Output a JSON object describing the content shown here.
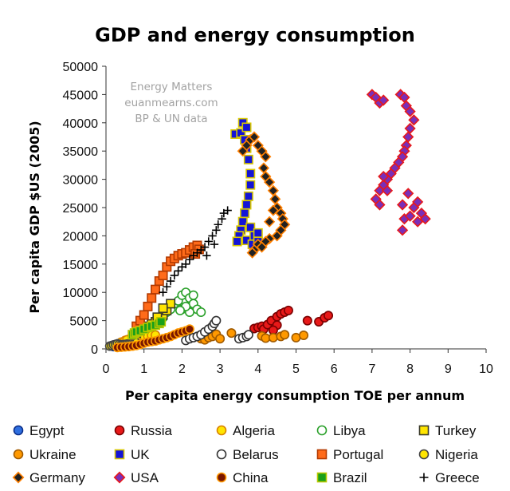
{
  "chart_data": {
    "type": "scatter",
    "title": "GDP and energy consumption",
    "xlabel": "Per capita energy consumption TOE per annum",
    "ylabel": "Per capita GDP $US (2005)",
    "xlim": [
      0,
      10
    ],
    "ylim": [
      0,
      50000
    ],
    "x_ticks": [
      "0",
      "1",
      "2",
      "3",
      "4",
      "5",
      "6",
      "7",
      "8",
      "9",
      "10"
    ],
    "y_ticks": [
      "0",
      "5000",
      "10000",
      "15000",
      "20000",
      "25000",
      "30000",
      "35000",
      "40000",
      "45000",
      "50000"
    ],
    "grid": false,
    "legend_position": "bottom",
    "annotation_lines": [
      "Energy Matters",
      "euanmearns.com",
      "BP & UN data"
    ],
    "series": [
      {
        "name": "Egypt",
        "marker": "circle",
        "fill": "#2f6fe0",
        "stroke": "#0b2f8a",
        "points": [
          [
            0.2,
            400
          ],
          [
            0.25,
            500
          ],
          [
            0.3,
            600
          ],
          [
            0.35,
            700
          ],
          [
            0.4,
            750
          ],
          [
            0.45,
            800
          ],
          [
            0.5,
            900
          ],
          [
            0.55,
            1000
          ],
          [
            0.6,
            1050
          ],
          [
            0.65,
            1100
          ],
          [
            0.7,
            1200
          ],
          [
            0.75,
            1250
          ],
          [
            0.8,
            1300
          ],
          [
            0.85,
            1400
          ],
          [
            0.9,
            1500
          ],
          [
            0.95,
            1550
          ]
        ]
      },
      {
        "name": "Russia",
        "marker": "circle",
        "fill": "#e81919",
        "stroke": "#7a0000",
        "points": [
          [
            3.9,
            3600
          ],
          [
            4.0,
            3800
          ],
          [
            4.1,
            4000
          ],
          [
            4.15,
            3500
          ],
          [
            4.25,
            4300
          ],
          [
            4.35,
            5000
          ],
          [
            4.5,
            5700
          ],
          [
            4.6,
            6200
          ],
          [
            4.7,
            6500
          ],
          [
            4.8,
            6800
          ],
          [
            4.5,
            4200
          ],
          [
            4.4,
            3300
          ],
          [
            5.3,
            5000
          ],
          [
            5.6,
            4800
          ],
          [
            5.75,
            5500
          ],
          [
            5.85,
            5900
          ]
        ]
      },
      {
        "name": "Algeria",
        "marker": "circle",
        "fill": "#ffe500",
        "stroke": "#d98200",
        "points": [
          [
            0.4,
            1200
          ],
          [
            0.5,
            1500
          ],
          [
            0.6,
            1700
          ],
          [
            0.7,
            1900
          ],
          [
            0.8,
            2000
          ],
          [
            0.9,
            2100
          ],
          [
            1.0,
            2200
          ],
          [
            1.1,
            2300
          ],
          [
            1.2,
            2400
          ],
          [
            1.3,
            2450
          ],
          [
            0.55,
            1600
          ],
          [
            0.75,
            1800
          ]
        ]
      },
      {
        "name": "Libya",
        "marker": "circle",
        "fill": "#ffffff",
        "stroke": "#2aa02a",
        "points": [
          [
            1.5,
            5500
          ],
          [
            1.6,
            6500
          ],
          [
            1.7,
            7000
          ],
          [
            1.8,
            8000
          ],
          [
            1.9,
            8500
          ],
          [
            2.0,
            9500
          ],
          [
            2.1,
            10000
          ],
          [
            2.2,
            9000
          ],
          [
            2.3,
            8000
          ],
          [
            2.4,
            7000
          ],
          [
            2.5,
            6500
          ],
          [
            2.2,
            6500
          ],
          [
            2.0,
            7000
          ],
          [
            2.1,
            7500
          ],
          [
            1.95,
            6800
          ],
          [
            2.3,
            9500
          ]
        ]
      },
      {
        "name": "Turkey",
        "marker": "square",
        "fill": "#ffe500",
        "stroke": "#3a3a2a",
        "points": [
          [
            0.7,
            2500
          ],
          [
            0.8,
            2800
          ],
          [
            0.9,
            3200
          ],
          [
            1.0,
            3600
          ],
          [
            1.1,
            4000
          ],
          [
            1.2,
            4400
          ],
          [
            1.3,
            4800
          ],
          [
            1.4,
            5300
          ],
          [
            1.5,
            6000
          ],
          [
            1.6,
            6800
          ],
          [
            1.7,
            8000
          ],
          [
            1.5,
            7200
          ],
          [
            1.35,
            5600
          ]
        ]
      },
      {
        "name": "Ukraine",
        "marker": "circle",
        "fill": "#ff9900",
        "stroke": "#a05a00",
        "points": [
          [
            2.5,
            1800
          ],
          [
            2.6,
            1600
          ],
          [
            2.7,
            2000
          ],
          [
            2.8,
            2200
          ],
          [
            2.9,
            2600
          ],
          [
            3.0,
            1800
          ],
          [
            3.3,
            2800
          ],
          [
            4.1,
            2300
          ],
          [
            4.2,
            1900
          ],
          [
            4.4,
            2000
          ],
          [
            4.6,
            2200
          ],
          [
            4.7,
            2500
          ],
          [
            5.0,
            2000
          ],
          [
            5.2,
            2400
          ]
        ]
      },
      {
        "name": "UK",
        "marker": "square",
        "fill": "#1414d6",
        "stroke": "#d8c800",
        "points": [
          [
            3.4,
            38000
          ],
          [
            3.55,
            38200
          ],
          [
            3.6,
            40000
          ],
          [
            3.7,
            39200
          ],
          [
            3.65,
            37000
          ],
          [
            3.7,
            35500
          ],
          [
            3.75,
            33500
          ],
          [
            3.8,
            31000
          ],
          [
            3.8,
            29000
          ],
          [
            3.75,
            27000
          ],
          [
            3.7,
            25500
          ],
          [
            3.65,
            24000
          ],
          [
            3.6,
            22500
          ],
          [
            3.55,
            21000
          ],
          [
            3.5,
            20000
          ],
          [
            3.45,
            19000
          ],
          [
            3.7,
            19200
          ],
          [
            3.85,
            18500
          ],
          [
            3.9,
            20000
          ],
          [
            3.8,
            21500
          ],
          [
            4.0,
            20500
          ],
          [
            4.0,
            19000
          ]
        ]
      },
      {
        "name": "Belarus",
        "marker": "circle",
        "fill": "#ffffff",
        "stroke": "#333333",
        "points": [
          [
            2.1,
            1500
          ],
          [
            2.2,
            1800
          ],
          [
            2.3,
            2000
          ],
          [
            2.4,
            2200
          ],
          [
            2.5,
            2500
          ],
          [
            2.6,
            3000
          ],
          [
            2.7,
            3500
          ],
          [
            2.8,
            4000
          ],
          [
            2.85,
            4500
          ],
          [
            2.9,
            5000
          ],
          [
            3.5,
            1800
          ],
          [
            3.6,
            2000
          ],
          [
            3.7,
            2200
          ],
          [
            3.75,
            2500
          ]
        ]
      },
      {
        "name": "Portugal",
        "marker": "square",
        "fill": "#ff6b1a",
        "stroke": "#b33a00",
        "points": [
          [
            0.8,
            4000
          ],
          [
            0.9,
            5000
          ],
          [
            1.0,
            6000
          ],
          [
            1.1,
            7500
          ],
          [
            1.2,
            9000
          ],
          [
            1.3,
            10500
          ],
          [
            1.4,
            12000
          ],
          [
            1.5,
            13000
          ],
          [
            1.6,
            14500
          ],
          [
            1.7,
            15500
          ],
          [
            1.8,
            16000
          ],
          [
            1.9,
            16500
          ],
          [
            2.0,
            16800
          ],
          [
            2.1,
            17000
          ],
          [
            2.2,
            17500
          ],
          [
            2.3,
            18000
          ],
          [
            2.4,
            18300
          ],
          [
            2.45,
            17600
          ],
          [
            2.35,
            16800
          ]
        ]
      },
      {
        "name": "Nigeria",
        "marker": "circle",
        "fill": "#ffe500",
        "stroke": "#444444",
        "points": [
          [
            0.1,
            500
          ],
          [
            0.15,
            600
          ],
          [
            0.2,
            700
          ],
          [
            0.25,
            800
          ],
          [
            0.3,
            900
          ],
          [
            0.35,
            800
          ],
          [
            0.4,
            700
          ],
          [
            0.45,
            750
          ],
          [
            0.5,
            800
          ],
          [
            0.55,
            850
          ],
          [
            0.6,
            900
          ],
          [
            0.65,
            950
          ],
          [
            0.7,
            1000
          ],
          [
            0.75,
            1000
          ],
          [
            0.8,
            1050
          ]
        ]
      },
      {
        "name": "Germany",
        "marker": "diamond",
        "fill": "#222222",
        "stroke": "#ff7f00",
        "points": [
          [
            3.6,
            35000
          ],
          [
            3.7,
            36000
          ],
          [
            3.8,
            37000
          ],
          [
            3.9,
            37500
          ],
          [
            4.0,
            36000
          ],
          [
            4.1,
            35000
          ],
          [
            4.2,
            34000
          ],
          [
            4.15,
            32000
          ],
          [
            4.2,
            30500
          ],
          [
            4.3,
            29500
          ],
          [
            4.4,
            28000
          ],
          [
            4.45,
            26500
          ],
          [
            4.5,
            25000
          ],
          [
            4.6,
            24000
          ],
          [
            4.65,
            23000
          ],
          [
            4.7,
            22000
          ],
          [
            4.6,
            21000
          ],
          [
            4.5,
            20000
          ],
          [
            4.3,
            19500
          ],
          [
            4.2,
            19000
          ],
          [
            4.0,
            18500
          ],
          [
            3.9,
            17500
          ],
          [
            3.85,
            17000
          ],
          [
            4.1,
            18000
          ],
          [
            4.3,
            22500
          ],
          [
            4.4,
            24500
          ]
        ]
      },
      {
        "name": "USA",
        "marker": "diamond",
        "fill": "#7a2fb8",
        "stroke": "#e81919",
        "points": [
          [
            7.0,
            45000
          ],
          [
            7.1,
            44500
          ],
          [
            7.2,
            43500
          ],
          [
            7.3,
            44000
          ],
          [
            7.75,
            45000
          ],
          [
            7.85,
            44500
          ],
          [
            7.9,
            43000
          ],
          [
            8.0,
            42000
          ],
          [
            8.1,
            40500
          ],
          [
            8.0,
            39000
          ],
          [
            7.95,
            37500
          ],
          [
            7.9,
            36000
          ],
          [
            7.85,
            35000
          ],
          [
            7.8,
            34000
          ],
          [
            7.7,
            33000
          ],
          [
            7.6,
            32000
          ],
          [
            7.5,
            31000
          ],
          [
            7.4,
            30000
          ],
          [
            7.3,
            29000
          ],
          [
            7.2,
            28000
          ],
          [
            7.1,
            26500
          ],
          [
            7.2,
            25500
          ],
          [
            7.8,
            25500
          ],
          [
            7.85,
            23000
          ],
          [
            7.8,
            21000
          ],
          [
            8.0,
            23500
          ],
          [
            8.1,
            25000
          ],
          [
            8.2,
            26000
          ],
          [
            8.3,
            24000
          ],
          [
            8.4,
            23000
          ],
          [
            8.2,
            22500
          ],
          [
            7.95,
            27500
          ],
          [
            7.4,
            28000
          ],
          [
            7.3,
            30500
          ]
        ]
      },
      {
        "name": "China",
        "marker": "circle",
        "fill": "#7a1700",
        "stroke": "#ff9900",
        "points": [
          [
            0.3,
            250
          ],
          [
            0.4,
            300
          ],
          [
            0.5,
            350
          ],
          [
            0.6,
            400
          ],
          [
            0.7,
            500
          ],
          [
            0.8,
            600
          ],
          [
            0.9,
            800
          ],
          [
            1.0,
            1000
          ],
          [
            1.1,
            1200
          ],
          [
            1.2,
            1300
          ],
          [
            1.3,
            1400
          ],
          [
            1.4,
            1600
          ],
          [
            1.5,
            1800
          ],
          [
            1.6,
            2000
          ],
          [
            1.7,
            2200
          ],
          [
            1.8,
            2500
          ],
          [
            1.9,
            2800
          ],
          [
            2.0,
            3000
          ],
          [
            2.1,
            3200
          ],
          [
            2.2,
            3500
          ]
        ]
      },
      {
        "name": "Brazil",
        "marker": "square",
        "fill": "#1aa01a",
        "stroke": "#b8c800",
        "points": [
          [
            0.7,
            2500
          ],
          [
            0.75,
            2800
          ],
          [
            0.8,
            3000
          ],
          [
            0.9,
            3200
          ],
          [
            1.0,
            3500
          ],
          [
            1.1,
            3800
          ],
          [
            1.2,
            4000
          ],
          [
            1.3,
            4200
          ],
          [
            1.4,
            4500
          ],
          [
            1.45,
            4800
          ]
        ]
      },
      {
        "name": "Greece",
        "marker": "plus",
        "fill": "#000000",
        "stroke": "#000000",
        "points": [
          [
            1.5,
            10000
          ],
          [
            1.6,
            11000
          ],
          [
            1.7,
            12000
          ],
          [
            1.8,
            13000
          ],
          [
            1.9,
            13800
          ],
          [
            2.0,
            14500
          ],
          [
            2.1,
            15000
          ],
          [
            2.2,
            15800
          ],
          [
            2.3,
            16500
          ],
          [
            2.4,
            17000
          ],
          [
            2.5,
            17500
          ],
          [
            2.6,
            18000
          ],
          [
            2.7,
            19000
          ],
          [
            2.8,
            20000
          ],
          [
            2.9,
            21000
          ],
          [
            2.95,
            22000
          ],
          [
            3.05,
            23000
          ],
          [
            3.1,
            24000
          ],
          [
            3.2,
            24500
          ],
          [
            2.85,
            18500
          ],
          [
            2.65,
            16500
          ]
        ]
      }
    ]
  }
}
